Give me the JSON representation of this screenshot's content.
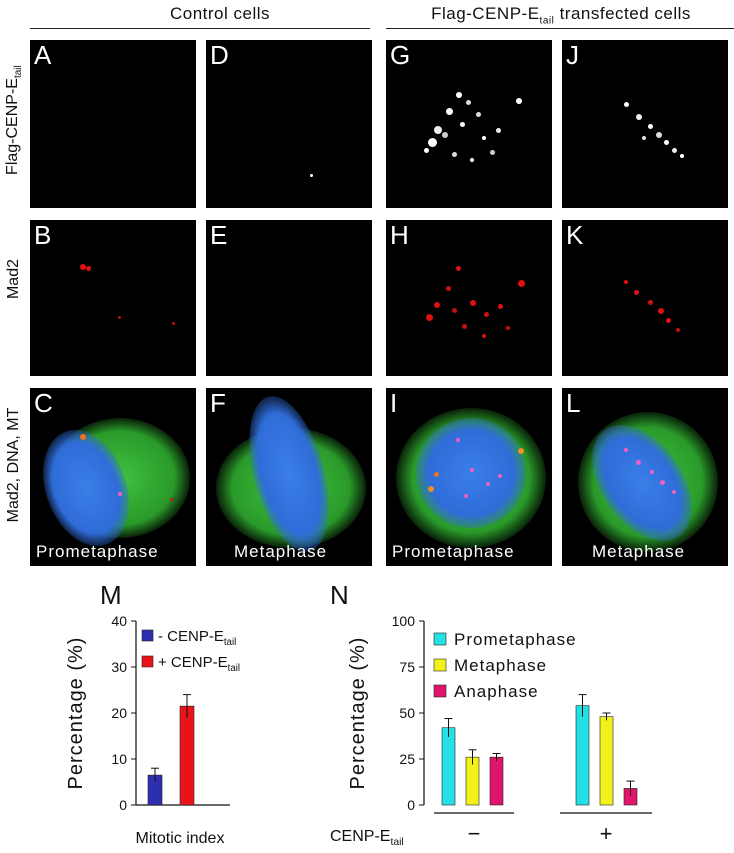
{
  "headers": {
    "control": "Control cells",
    "transfected_pre": "Flag-CENP-E",
    "transfected_sub": "tail",
    "transfected_post": " transfected cells"
  },
  "row_labels": {
    "row1_pre": "Flag-CENP-E",
    "row1_sub": "tail",
    "row2": "Mad2",
    "row3": "Mad2, DNA, MT"
  },
  "panels": {
    "A": "A",
    "B": "B",
    "C": "C",
    "D": "D",
    "E": "E",
    "F": "F",
    "G": "G",
    "H": "H",
    "I": "I",
    "J": "J",
    "K": "K",
    "L": "L"
  },
  "phase_labels": {
    "C": "Prometaphase",
    "F": "Metaphase",
    "I": "Prometaphase",
    "L": "Metaphase"
  },
  "colors": {
    "blue_bar": "#2e2eb0",
    "red_bar": "#e8141a",
    "cyan_bar": "#22e0e6",
    "yellow_bar": "#f2f21a",
    "magenta_bar": "#e0146a",
    "dna": "#2f6cd8",
    "mt": "#2fb52f",
    "mad2": "#e01010"
  },
  "chart_data": [
    {
      "panel": "M",
      "type": "bar",
      "ylabel": "Percentage (%)",
      "xlabel": "Mitotic index",
      "ylim": [
        0,
        40
      ],
      "yticks": [
        0,
        10,
        20,
        30,
        40
      ],
      "legend": [
        {
          "sign": "- ",
          "name": "CENP-E",
          "sub": "tail"
        },
        {
          "sign": "+ ",
          "name": "CENP-E",
          "sub": "tail"
        }
      ],
      "categories": [
        "- CENP-E tail",
        "+ CENP-E tail"
      ],
      "values": [
        6.5,
        21.5
      ],
      "errors": [
        1.5,
        2.5
      ]
    },
    {
      "panel": "N",
      "type": "bar",
      "ylabel": "Percentage (%)",
      "ylim": [
        0,
        100
      ],
      "yticks": [
        0,
        25,
        50,
        75,
        100
      ],
      "group_prefix": "CENP-E",
      "group_prefix_sub": "tail",
      "groups": [
        "−",
        "+"
      ],
      "series": [
        {
          "name": "Prometaphase",
          "values": [
            42,
            54
          ],
          "errors": [
            5,
            6
          ]
        },
        {
          "name": "Metaphase",
          "values": [
            26,
            48
          ],
          "errors": [
            4,
            2
          ]
        },
        {
          "name": "Anaphase",
          "values": [
            26,
            9
          ],
          "errors": [
            2,
            4
          ]
        }
      ]
    }
  ]
}
